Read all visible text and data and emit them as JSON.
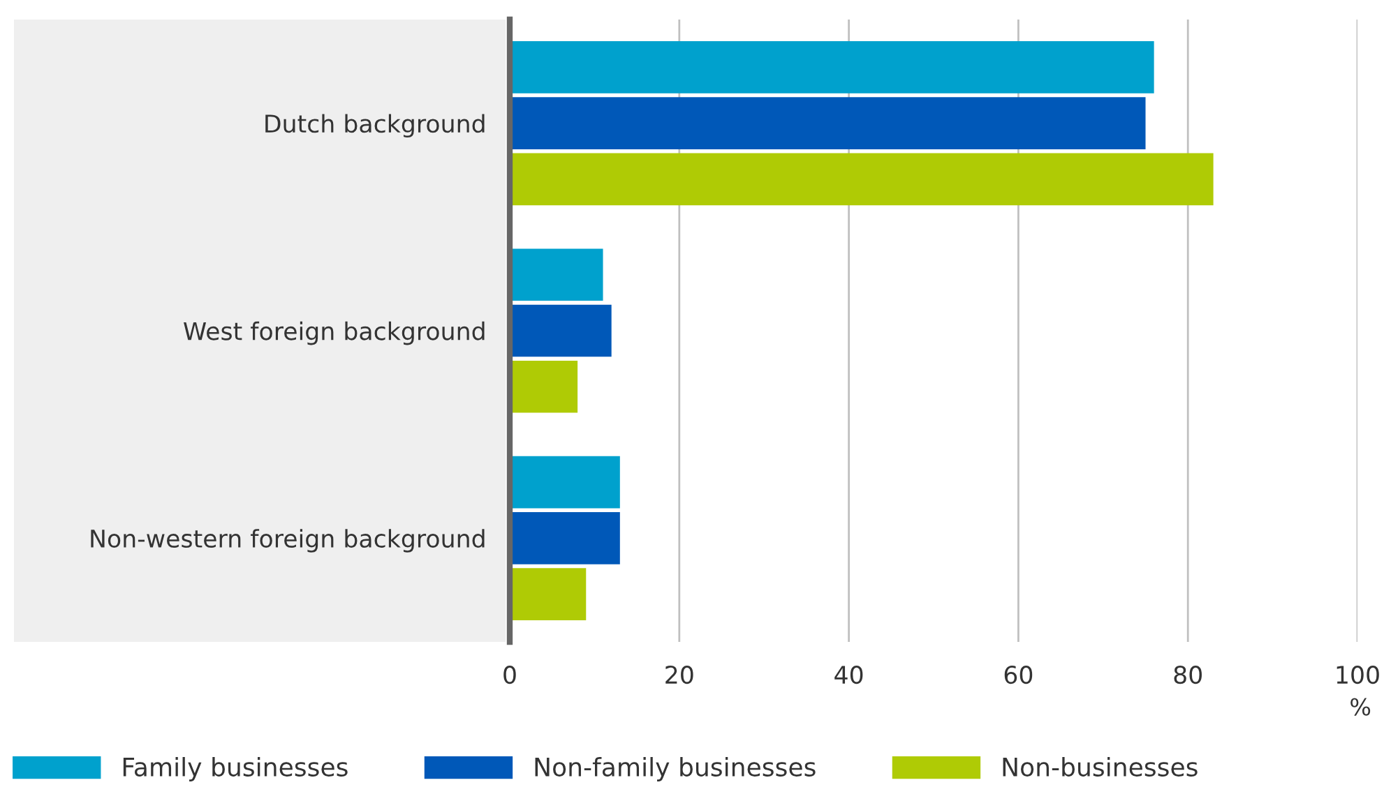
{
  "chart_data": {
    "type": "bar",
    "orientation": "horizontal",
    "categories": [
      "Dutch background",
      "West foreign background",
      "Non-western foreign background"
    ],
    "series": [
      {
        "name": "Family businesses",
        "color": "#00a1cd",
        "values": [
          76,
          11,
          13
        ]
      },
      {
        "name": "Non-family businesses",
        "color": "#0058b8",
        "values": [
          75,
          12,
          13
        ]
      },
      {
        "name": "Non-businesses",
        "color": "#afcb05",
        "values": [
          83,
          8,
          9
        ]
      }
    ],
    "xlim": [
      0,
      100
    ],
    "xticks": [
      0,
      20,
      40,
      60,
      80,
      100
    ],
    "xlabel": "%",
    "grid": "x",
    "legend": "bottom"
  }
}
